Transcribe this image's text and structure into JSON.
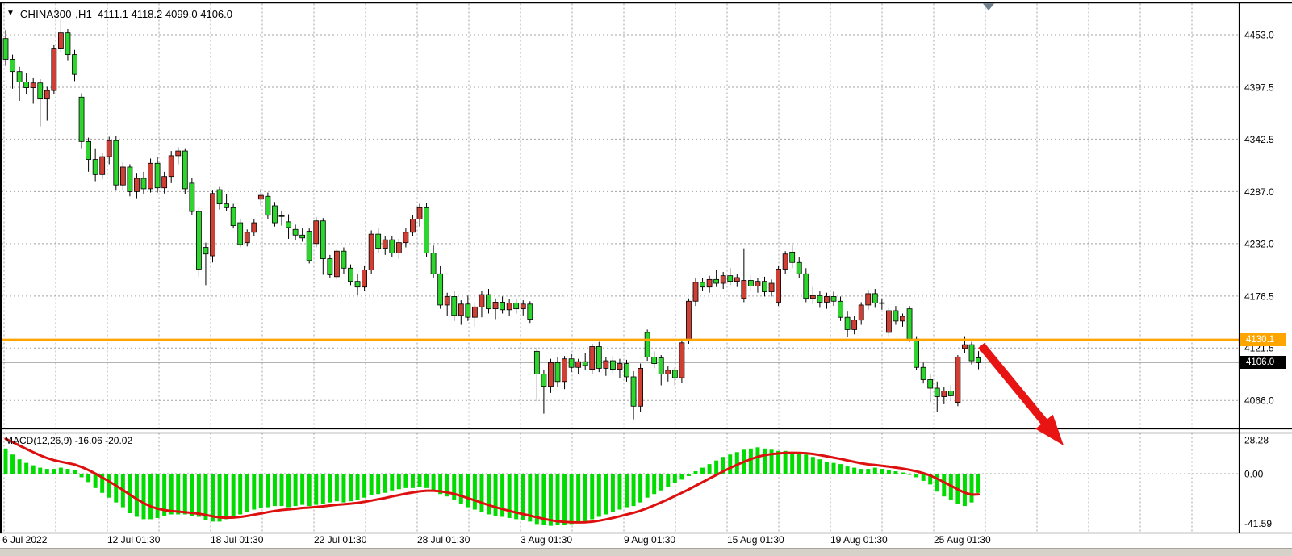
{
  "header": {
    "symbol_timeframe": "CHINA300-,H1",
    "ohlc_text": "4111.1 4118.2 4099.0 4106.0"
  },
  "macd_panel": {
    "label": "MACD(12,26,9)",
    "main_value": "-16.06",
    "signal_value": "-20.02",
    "axis_labels": [
      "28.28",
      "0.00",
      "-41.59"
    ]
  },
  "main_panel": {
    "price_axis_labels": [
      "4453.0",
      "4397.5",
      "4342.5",
      "4287.0",
      "4232.0",
      "4176.5",
      "4121.5",
      "4066.0"
    ],
    "time_axis_labels": [
      "6 Jul 2022",
      "12 Jul 01:30",
      "18 Jul 01:30",
      "22 Jul 01:30",
      "28 Jul 01:30",
      "3 Aug 01:30",
      "9 Aug 01:30",
      "15 Aug 01:30",
      "19 Aug 01:30",
      "25 Aug 01:30"
    ],
    "hline": {
      "label": "4130.1",
      "price": 4130.1
    },
    "current": {
      "label": "4106.0",
      "price": 4106.0
    }
  },
  "colors": {
    "bull_up": "#cf3f34",
    "bear_down": "#2fd52f",
    "wick_outline": "#000000",
    "hist_green": "#00dc00",
    "signal_red": "#dd0f0f",
    "arrow_red": "#e81414",
    "hline_orange": "#FFA500",
    "grid": "#a3a3a3",
    "current_line": "#a8a8a8",
    "marker_gray": "#708090"
  },
  "chart_data": {
    "type": "candlestick+macd",
    "symbol": "CHINA300-",
    "timeframe": "H1",
    "quote": {
      "open": 4111.1,
      "high": 4118.2,
      "low": 4099.0,
      "close": 4106.0
    },
    "price_axis_ticks": [
      4453.0,
      4397.5,
      4342.5,
      4287.0,
      4232.0,
      4176.5,
      4121.5,
      4066.0
    ],
    "time_axis_ticks": [
      "6 Jul 2022",
      "12 Jul 01:30",
      "18 Jul 01:30",
      "22 Jul 01:30",
      "28 Jul 01:30",
      "3 Aug 01:30",
      "9 Aug 01:30",
      "15 Aug 01:30",
      "19 Aug 01:30",
      "25 Aug 01:30"
    ],
    "horizontal_line_price": 4130.1,
    "current_price": 4106.0,
    "note_color_convention": "red body = close above open (up), green body = close below open (down)",
    "candles_ohlc": [
      [
        4449,
        4458,
        4420,
        4427
      ],
      [
        4427,
        4432,
        4396,
        4414
      ],
      [
        4414,
        4419,
        4383,
        4403
      ],
      [
        4403,
        4412,
        4390,
        4397
      ],
      [
        4397,
        4407,
        4380,
        4402
      ],
      [
        4402,
        4406,
        4356,
        4385
      ],
      [
        4385,
        4398,
        4362,
        4394
      ],
      [
        4394,
        4442,
        4390,
        4438
      ],
      [
        4438,
        4470,
        4434,
        4455
      ],
      [
        4455,
        4459,
        4426,
        4432
      ],
      [
        4432,
        4437,
        4404,
        4411
      ],
      [
        4387,
        4391,
        4332,
        4340
      ],
      [
        4340,
        4344,
        4308,
        4321
      ],
      [
        4321,
        4332,
        4298,
        4305
      ],
      [
        4305,
        4328,
        4300,
        4324
      ],
      [
        4324,
        4345,
        4316,
        4341
      ],
      [
        4341,
        4346,
        4288,
        4294
      ],
      [
        4294,
        4318,
        4288,
        4313
      ],
      [
        4313,
        4316,
        4282,
        4287
      ],
      [
        4287,
        4306,
        4280,
        4301
      ],
      [
        4301,
        4308,
        4284,
        4290
      ],
      [
        4290,
        4322,
        4286,
        4317
      ],
      [
        4317,
        4324,
        4286,
        4291
      ],
      [
        4291,
        4308,
        4285,
        4303
      ],
      [
        4303,
        4330,
        4296,
        4325
      ],
      [
        4325,
        4334,
        4316,
        4330
      ],
      [
        4330,
        4332,
        4284,
        4290
      ],
      [
        4296,
        4301,
        4262,
        4266
      ],
      [
        4266,
        4270,
        4197,
        4205
      ],
      [
        4228,
        4233,
        4188,
        4221
      ],
      [
        4219,
        4288,
        4212,
        4285
      ],
      [
        4289,
        4292,
        4268,
        4274
      ],
      [
        4274,
        4284,
        4266,
        4270
      ],
      [
        4270,
        4274,
        4248,
        4251
      ],
      [
        4254,
        4258,
        4228,
        4231
      ],
      [
        4233,
        4247,
        4229,
        4244
      ],
      [
        4244,
        4258,
        4240,
        4254
      ],
      [
        4279,
        4290,
        4272,
        4283
      ],
      [
        4282,
        4286,
        4258,
        4262
      ],
      [
        4272,
        4276,
        4250,
        4254
      ],
      [
        4261,
        4267,
        4251,
        4261
      ],
      [
        4255,
        4263,
        4237,
        4249
      ],
      [
        4247,
        4252,
        4236,
        4241
      ],
      [
        4241,
        4248,
        4234,
        4238
      ],
      [
        4245,
        4248,
        4211,
        4214
      ],
      [
        4232,
        4260,
        4228,
        4256
      ],
      [
        4256,
        4259,
        4199,
        4216
      ],
      [
        4216,
        4220,
        4196,
        4199
      ],
      [
        4197,
        4226,
        4194,
        4224
      ],
      [
        4224,
        4228,
        4200,
        4206
      ],
      [
        4206,
        4210,
        4188,
        4192
      ],
      [
        4192,
        4200,
        4178,
        4186
      ],
      [
        4186,
        4208,
        4182,
        4204
      ],
      [
        4204,
        4246,
        4200,
        4242
      ],
      [
        4242,
        4248,
        4222,
        4227
      ],
      [
        4227,
        4240,
        4220,
        4236
      ],
      [
        4236,
        4240,
        4218,
        4222
      ],
      [
        4222,
        4237,
        4216,
        4233
      ],
      [
        4233,
        4248,
        4228,
        4244
      ],
      [
        4244,
        4262,
        4240,
        4258
      ],
      [
        4258,
        4274,
        4250,
        4270
      ],
      [
        4270,
        4275,
        4218,
        4222
      ],
      [
        4222,
        4230,
        4196,
        4200
      ],
      [
        4200,
        4208,
        4163,
        4167
      ],
      [
        4167,
        4180,
        4155,
        4176
      ],
      [
        4176,
        4182,
        4150,
        4156
      ],
      [
        4156,
        4172,
        4146,
        4168
      ],
      [
        4168,
        4177,
        4150,
        4154
      ],
      [
        4154,
        4170,
        4144,
        4165
      ],
      [
        4165,
        4182,
        4154,
        4178
      ],
      [
        4178,
        4184,
        4158,
        4163
      ],
      [
        4163,
        4174,
        4152,
        4170
      ],
      [
        4170,
        4176,
        4158,
        4162
      ],
      [
        4162,
        4173,
        4155,
        4169
      ],
      [
        4169,
        4174,
        4158,
        4163
      ],
      [
        4163,
        4172,
        4156,
        4168
      ],
      [
        4168,
        4171,
        4148,
        4152
      ],
      [
        4118,
        4122,
        4065,
        4094
      ],
      [
        4094,
        4098,
        4052,
        4081
      ],
      [
        4081,
        4110,
        4074,
        4106
      ],
      [
        4106,
        4112,
        4080,
        4086
      ],
      [
        4086,
        4113,
        4078,
        4110
      ],
      [
        4110,
        4115,
        4096,
        4101
      ],
      [
        4101,
        4110,
        4094,
        4107
      ],
      [
        4107,
        4116,
        4098,
        4103
      ],
      [
        4099,
        4126,
        4094,
        4123
      ],
      [
        4123,
        4128,
        4096,
        4100
      ],
      [
        4100,
        4112,
        4092,
        4108
      ],
      [
        4108,
        4113,
        4095,
        4099
      ],
      [
        4099,
        4110,
        4090,
        4105
      ],
      [
        4105,
        4109,
        4086,
        4091
      ],
      [
        4091,
        4097,
        4046,
        4060
      ],
      [
        4060,
        4105,
        4054,
        4100
      ],
      [
        4138,
        4141,
        4108,
        4112
      ],
      [
        4112,
        4118,
        4100,
        4105
      ],
      [
        4111,
        4114,
        4082,
        4094
      ],
      [
        4094,
        4102,
        4086,
        4098
      ],
      [
        4098,
        4101,
        4082,
        4090
      ],
      [
        4090,
        4131,
        4085,
        4127
      ],
      [
        4129,
        4174,
        4126,
        4171
      ],
      [
        4171,
        4195,
        4166,
        4191
      ],
      [
        4191,
        4196,
        4182,
        4186
      ],
      [
        4186,
        4198,
        4180,
        4194
      ],
      [
        4194,
        4204,
        4186,
        4190
      ],
      [
        4190,
        4202,
        4184,
        4198
      ],
      [
        4198,
        4206,
        4188,
        4192
      ],
      [
        4192,
        4200,
        4186,
        4196
      ],
      [
        4174,
        4227,
        4170,
        4193
      ],
      [
        4193,
        4199,
        4182,
        4187
      ],
      [
        4187,
        4196,
        4180,
        4192
      ],
      [
        4192,
        4197,
        4176,
        4181
      ],
      [
        4181,
        4194,
        4176,
        4190
      ],
      [
        4170,
        4208,
        4166,
        4205
      ],
      [
        4205,
        4224,
        4200,
        4221
      ],
      [
        4223,
        4230,
        4206,
        4212
      ],
      [
        4212,
        4218,
        4196,
        4200
      ],
      [
        4200,
        4206,
        4170,
        4174
      ],
      [
        4174,
        4186,
        4168,
        4177
      ],
      [
        4177,
        4182,
        4164,
        4170
      ],
      [
        4170,
        4180,
        4163,
        4176
      ],
      [
        4176,
        4181,
        4166,
        4171
      ],
      [
        4171,
        4176,
        4150,
        4154
      ],
      [
        4154,
        4160,
        4133,
        4141
      ],
      [
        4141,
        4155,
        4136,
        4151
      ],
      [
        4151,
        4170,
        4146,
        4167
      ],
      [
        4167,
        4183,
        4162,
        4179
      ],
      [
        4179,
        4184,
        4164,
        4169
      ],
      [
        4169,
        4174,
        4162,
        4168
      ],
      [
        4138,
        4164,
        4134,
        4161
      ],
      [
        4161,
        4166,
        4146,
        4150
      ],
      [
        4150,
        4158,
        4144,
        4155
      ],
      [
        4163,
        4166,
        4128,
        4131
      ],
      [
        4131,
        4134,
        4098,
        4101
      ],
      [
        4101,
        4106,
        4084,
        4088
      ],
      [
        4088,
        4094,
        4064,
        4079
      ],
      [
        4079,
        4086,
        4054,
        4070
      ],
      [
        4070,
        4080,
        4062,
        4076
      ],
      [
        4076,
        4082,
        4066,
        4071
      ],
      [
        4064,
        4114,
        4060,
        4112
      ],
      [
        4121,
        4134,
        4116,
        4125
      ],
      [
        4125,
        4128,
        4104,
        4108
      ],
      [
        4111.1,
        4118.2,
        4099.0,
        4106.0
      ]
    ],
    "macd": {
      "axis_ticks": [
        28.28,
        0.0,
        -41.59
      ],
      "main_last": -16.06,
      "signal_last": -20.02,
      "signal_seed": 31,
      "signal_ema_period": 9,
      "histogram": [
        21,
        16,
        12,
        9,
        7,
        5,
        4,
        4,
        5,
        4,
        3,
        -3,
        -7,
        -12,
        -16,
        -20,
        -24,
        -28,
        -33,
        -36,
        -38,
        -38,
        -37,
        -35,
        -34,
        -34,
        -34,
        -35,
        -36,
        -39,
        -40,
        -40,
        -38,
        -36,
        -34,
        -32,
        -30,
        -29,
        -28,
        -27,
        -27,
        -28,
        -27,
        -26,
        -27,
        -26,
        -25,
        -24,
        -23,
        -24,
        -23,
        -22,
        -20,
        -18,
        -17,
        -16,
        -14,
        -13,
        -12,
        -12,
        -11,
        -12,
        -14,
        -17,
        -19,
        -22,
        -25,
        -28,
        -30,
        -32,
        -34,
        -35,
        -36,
        -37,
        -38,
        -39,
        -40,
        -42,
        -43,
        -43.5,
        -43,
        -42.5,
        -42,
        -41,
        -40,
        -38,
        -36,
        -34,
        -32,
        -30,
        -28,
        -27,
        -24,
        -20,
        -17,
        -14,
        -11,
        -8,
        -5,
        -2,
        2,
        5,
        8,
        11,
        14,
        16,
        18,
        20,
        21,
        22,
        21,
        20,
        19,
        19,
        18,
        17,
        16,
        14,
        12,
        10,
        9,
        8,
        6,
        5,
        4,
        4,
        5,
        4,
        3,
        2,
        1,
        -1,
        -3,
        -6,
        -9,
        -15,
        -19,
        -22,
        -25,
        -27,
        -24,
        -16.06
      ]
    },
    "annotation_arrow": {
      "from": [
        1216,
        428
      ],
      "to": [
        1318,
        552
      ]
    }
  }
}
